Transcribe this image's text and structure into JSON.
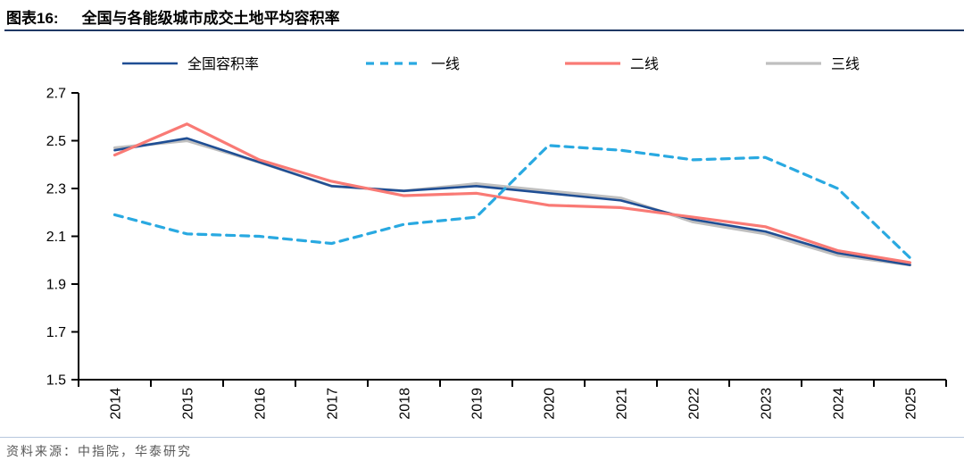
{
  "header": {
    "label": "图表16:",
    "title": "全国与各能级城市成交土地平均容积率"
  },
  "source": {
    "text": "资料来源：中指院，华泰研究"
  },
  "accents": {
    "title_rule": "#1F3864",
    "source_rule": "#B7C7DE",
    "axis_color": "#000000"
  },
  "chart_data": {
    "type": "line",
    "title": "全国与各能级城市成交土地平均容积率",
    "xlabel": "",
    "ylabel": "",
    "ylim": [
      1.5,
      2.7
    ],
    "ytick_step": 0.2,
    "grid": false,
    "legend_position": "top",
    "categories": [
      "2014",
      "2015",
      "2016",
      "2017",
      "2018",
      "2019",
      "2020",
      "2021",
      "2022",
      "2023",
      "2024",
      "2025"
    ],
    "series": [
      {
        "key": "national-plot-ratio",
        "name": "全国容积率",
        "color": "#1F4E94",
        "style": "solid",
        "values": [
          2.46,
          2.51,
          2.41,
          2.31,
          2.29,
          2.31,
          2.28,
          2.25,
          2.17,
          2.12,
          2.03,
          1.98
        ]
      },
      {
        "key": "tier1",
        "name": "一线",
        "color": "#29A9E1",
        "style": "dashed",
        "values": [
          2.19,
          2.11,
          2.1,
          2.07,
          2.15,
          2.18,
          2.48,
          2.46,
          2.42,
          2.43,
          2.3,
          2.01
        ]
      },
      {
        "key": "tier2",
        "name": "二线",
        "color": "#F97A75",
        "style": "solid",
        "values": [
          2.44,
          2.57,
          2.42,
          2.33,
          2.27,
          2.28,
          2.23,
          2.22,
          2.18,
          2.14,
          2.04,
          1.99
        ]
      },
      {
        "key": "tier3",
        "name": "三线",
        "color": "#BFBFBF",
        "style": "solid",
        "values": [
          2.47,
          2.5,
          2.41,
          2.31,
          2.29,
          2.32,
          2.29,
          2.26,
          2.16,
          2.11,
          2.02,
          1.98
        ]
      }
    ]
  }
}
